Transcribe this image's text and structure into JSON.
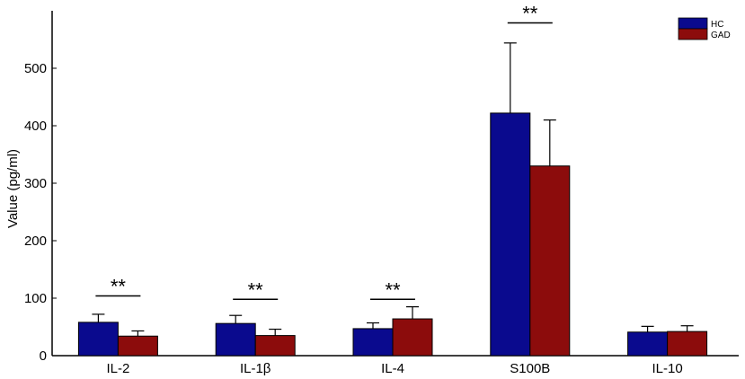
{
  "chart_data": {
    "type": "bar",
    "categories": [
      "IL-2",
      "IL-1β",
      "IL-4",
      "S100B",
      "IL-10"
    ],
    "series": [
      {
        "name": "HC",
        "color": "#0a0a8e",
        "values": [
          58,
          56,
          47,
          422,
          41
        ],
        "errors": [
          14,
          14,
          10,
          122,
          10
        ]
      },
      {
        "name": "GAD",
        "color": "#8c0c0c",
        "values": [
          34,
          35,
          64,
          330,
          42
        ],
        "errors": [
          9,
          11,
          21,
          80,
          10
        ]
      }
    ],
    "significance": [
      {
        "category": "IL-2",
        "label": "**",
        "level": 104
      },
      {
        "category": "IL-1β",
        "label": "**",
        "level": 98
      },
      {
        "category": "IL-4",
        "label": "**",
        "level": 98
      },
      {
        "category": "S100B",
        "label": "**",
        "level": 579
      }
    ],
    "xlabel": "",
    "ylabel": "Value (pg/ml)",
    "ylim": [
      0,
      600
    ],
    "yticks": [
      0,
      100,
      200,
      300,
      400,
      500
    ],
    "grid": false,
    "legend_position": "top-right"
  }
}
